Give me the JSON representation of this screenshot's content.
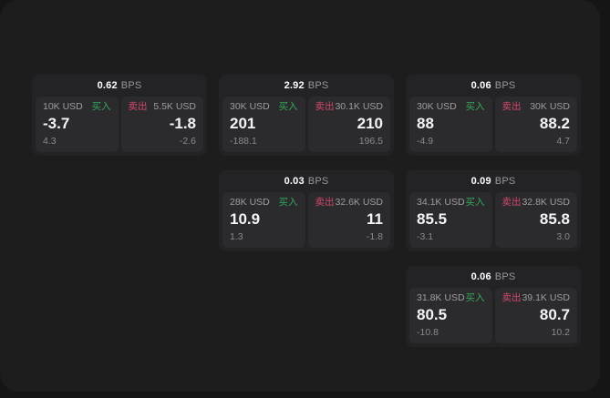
{
  "labels": {
    "buy": "买入",
    "sell": "卖出",
    "bps_suffix": "BPS"
  },
  "colors": {
    "buy": "#33a957",
    "sell": "#d2486a"
  },
  "cards": [
    {
      "bps": "0.62",
      "buy": {
        "size": "10K USD",
        "price": "-3.7",
        "delta": "4.3"
      },
      "sell": {
        "size": "5.5K USD",
        "price": "-1.8",
        "delta": "-2.6"
      }
    },
    {
      "bps": "2.92",
      "buy": {
        "size": "30K USD",
        "price": "201",
        "delta": "-188.1"
      },
      "sell": {
        "size": "30.1K USD",
        "price": "210",
        "delta": "196.5"
      }
    },
    {
      "bps": "0.06",
      "buy": {
        "size": "30K USD",
        "price": "88",
        "delta": "-4.9"
      },
      "sell": {
        "size": "30K USD",
        "price": "88.2",
        "delta": "4.7"
      }
    },
    {
      "bps": "0.03",
      "buy": {
        "size": "28K USD",
        "price": "10.9",
        "delta": "1.3"
      },
      "sell": {
        "size": "32.6K USD",
        "price": "11",
        "delta": "-1.8"
      }
    },
    {
      "bps": "0.09",
      "buy": {
        "size": "34.1K USD",
        "price": "85.5",
        "delta": "-3.1"
      },
      "sell": {
        "size": "32.8K USD",
        "price": "85.8",
        "delta": "3.0"
      }
    },
    {
      "bps": "0.06",
      "buy": {
        "size": "31.8K USD",
        "price": "80.5",
        "delta": "-10.8"
      },
      "sell": {
        "size": "39.1K USD",
        "price": "80.7",
        "delta": "10.2"
      }
    }
  ]
}
